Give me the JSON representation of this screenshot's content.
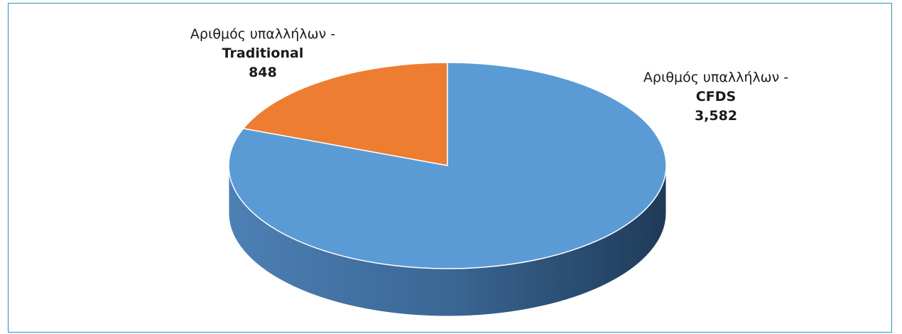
{
  "chart_data": {
    "type": "pie",
    "title": "",
    "labels_prefix": "Αριθμός υπαλλήλων -",
    "slices": [
      {
        "name": "Traditional",
        "value": 848,
        "value_label": "848",
        "color": "#ed7d31"
      },
      {
        "name": "CFDS",
        "value": 3582,
        "value_label": "3,582",
        "color": "#5b9bd5"
      }
    ],
    "legend": "none",
    "style": "3d"
  }
}
